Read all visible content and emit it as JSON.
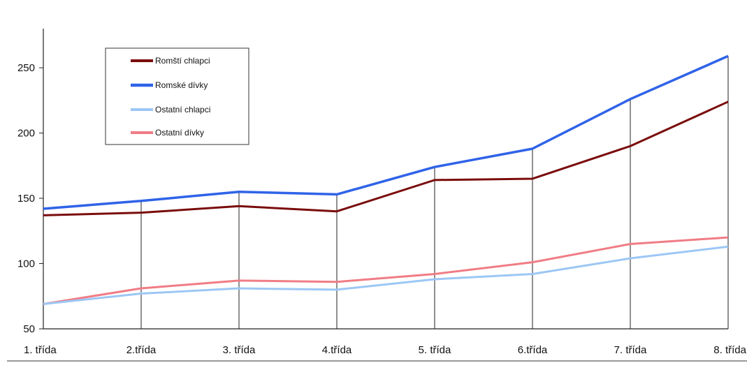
{
  "chart_data": {
    "type": "line",
    "categories": [
      "1. třída",
      "2.třída",
      "3. třída",
      "4.třída",
      "5. třída",
      "6.třída",
      "7. třída",
      "8. třída"
    ],
    "series": [
      {
        "name": "Romští chlapci",
        "color": "#7a0c0c",
        "values": [
          137,
          139,
          144,
          140,
          164,
          165,
          190,
          224
        ]
      },
      {
        "name": "Romské dívky",
        "color": "#2f63e8",
        "values": [
          142,
          148,
          155,
          153,
          174,
          188,
          226,
          259
        ]
      },
      {
        "name": "Ostatní chlapci",
        "color": "#9cc7f5",
        "values": [
          69,
          77,
          81,
          80,
          88,
          92,
          104,
          113
        ]
      },
      {
        "name": "Ostatní dívky",
        "color": "#f07c85",
        "values": [
          69,
          81,
          87,
          86,
          92,
          101,
          115,
          120
        ]
      }
    ],
    "y_ticks": [
      50,
      100,
      150,
      200,
      250
    ],
    "ylim": [
      50,
      280
    ],
    "grid": "vertical drop lines at each category",
    "legend": "top-left"
  }
}
